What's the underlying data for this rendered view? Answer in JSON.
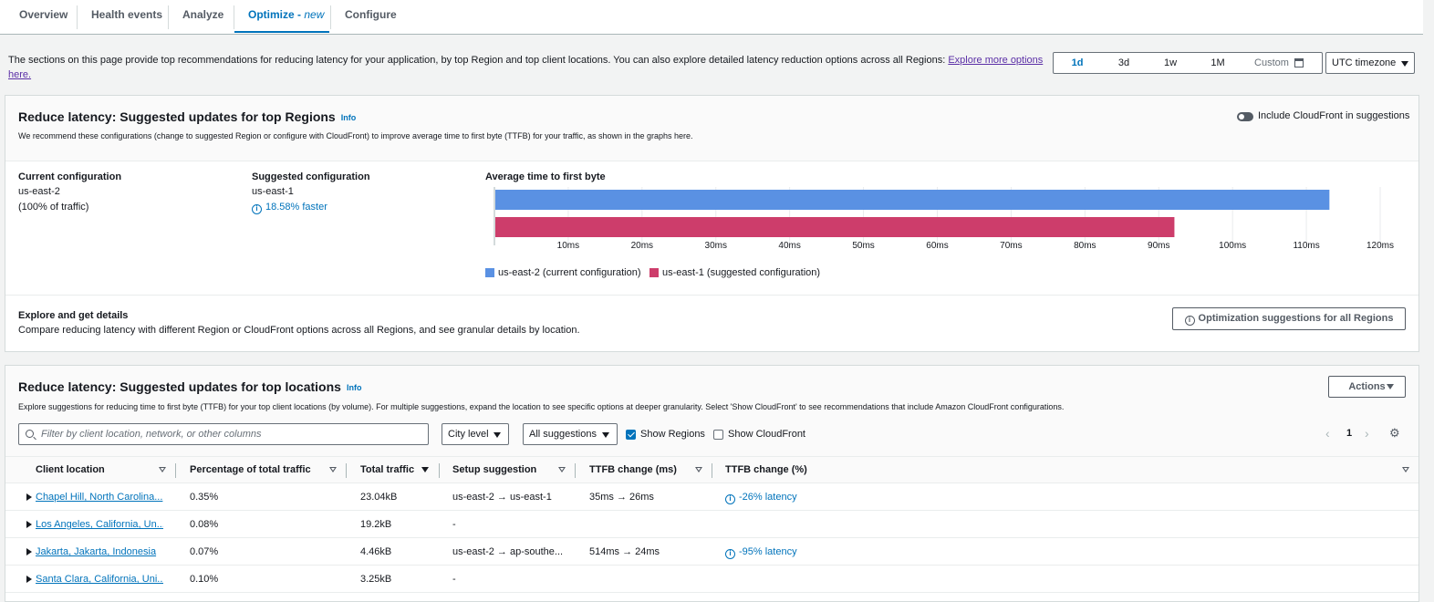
{
  "tabs": [
    {
      "label": "Overview"
    },
    {
      "label": "Health events"
    },
    {
      "label": "Analyze"
    },
    {
      "label": "Optimize -",
      "badge": "new"
    },
    {
      "label": "Configure"
    }
  ],
  "intro": {
    "text": "The sections on this page provide top recommendations for reducing latency for your application, by top Region and top client locations. You can also explore detailed latency reduction options across all Regions: ",
    "link": "Explore more options here."
  },
  "time_range": {
    "options": [
      "1d",
      "3d",
      "1w",
      "1M",
      "Custom"
    ],
    "selected": "1d",
    "calendar_icon": "calendar-icon",
    "timezone": "UTC timezone"
  },
  "regions_panel": {
    "title": "Reduce latency: Suggested updates for top Regions",
    "info": "Info",
    "toggle_label": "Include CloudFront in suggestions",
    "description": "We recommend these configurations (change to suggested Region or configure with CloudFront) to improve average time to first byte (TTFB) for your traffic, as shown in the graphs here.",
    "current_label": "Current configuration",
    "current_region": "us-east-2",
    "current_traffic": "(100% of traffic)",
    "suggested_label": "Suggested configuration",
    "suggested_region": "us-east-1",
    "suggested_gain": "18.58% faster",
    "explore_title": "Explore and get details",
    "explore_desc": "Compare reducing latency with different Region or CloudFront options across all Regions, and see granular details by location.",
    "explore_button": "Optimization suggestions for all Regions"
  },
  "chart_data": {
    "type": "bar",
    "orientation": "horizontal",
    "title": "Average time to first byte",
    "categories": [
      "us-east-2 (current configuration)",
      "us-east-1 (suggested configuration)"
    ],
    "values": [
      113,
      92
    ],
    "unit": "ms",
    "xlim": [
      0,
      120
    ],
    "ticks": [
      "10ms",
      "20ms",
      "30ms",
      "40ms",
      "50ms",
      "60ms",
      "70ms",
      "80ms",
      "90ms",
      "100ms",
      "110ms",
      "120ms"
    ],
    "colors": [
      "#5a91e3",
      "#cd3d6b"
    ],
    "legend_position": "bottom-left",
    "grid": true
  },
  "locations_panel": {
    "title": "Reduce latency: Suggested updates for top locations",
    "info": "Info",
    "actions_button": "Actions",
    "description": "Explore suggestions for reducing time to first byte (TTFB) for your top client locations (by volume). For multiple suggestions, expand the location to see specific options at deeper granularity. Select 'Show CloudFront' to see recommendations that include Amazon CloudFront configurations.",
    "search_placeholder": "Filter by client location, network, or other columns",
    "level_select": "City level",
    "suggestion_select": "All suggestions",
    "show_regions": "Show Regions",
    "show_cloudfront": "Show CloudFront",
    "page": "1",
    "columns": [
      "Client location",
      "Percentage of total traffic",
      "Total traffic",
      "Setup suggestion",
      "TTFB change (ms)",
      "TTFB change (%)"
    ],
    "rows": [
      {
        "location": "Chapel Hill, North Carolina...",
        "pct": "0.35%",
        "traffic": "23.04kB",
        "setup": "us-east-2 → us-east-1",
        "ttfb_ms": "35ms → 26ms",
        "ttfb_pct": "-26% latency"
      },
      {
        "location": "Los Angeles, California, Un...",
        "pct": "0.08%",
        "traffic": "19.2kB",
        "setup": "-",
        "ttfb_ms": "",
        "ttfb_pct": ""
      },
      {
        "location": "Jakarta, Jakarta, Indonesia",
        "pct": "0.07%",
        "traffic": "4.46kB",
        "setup": "us-east-2 → ap-southe...",
        "ttfb_ms": "514ms → 24ms",
        "ttfb_pct": "-95% latency"
      },
      {
        "location": "Santa Clara, California, Uni...",
        "pct": "0.10%",
        "traffic": "3.25kB",
        "setup": "-",
        "ttfb_ms": "",
        "ttfb_pct": ""
      }
    ]
  }
}
